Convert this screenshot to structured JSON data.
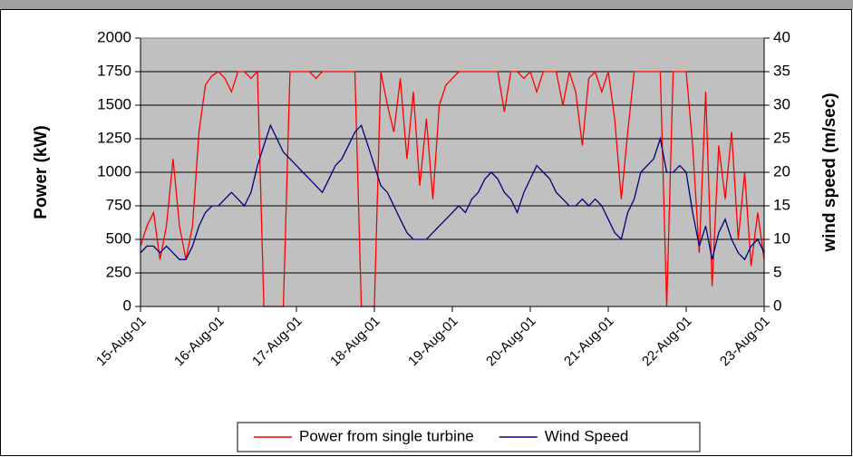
{
  "chart_data": {
    "type": "line",
    "x": [
      0,
      0.083,
      0.167,
      0.25,
      0.333,
      0.417,
      0.5,
      0.583,
      0.667,
      0.75,
      0.833,
      0.917,
      1,
      1.083,
      1.167,
      1.25,
      1.333,
      1.417,
      1.5,
      1.583,
      1.667,
      1.75,
      1.833,
      1.917,
      2,
      2.083,
      2.167,
      2.25,
      2.333,
      2.417,
      2.5,
      2.583,
      2.667,
      2.75,
      2.833,
      2.917,
      3,
      3.083,
      3.167,
      3.25,
      3.333,
      3.417,
      3.5,
      3.583,
      3.667,
      3.75,
      3.833,
      3.917,
      4,
      4.083,
      4.167,
      4.25,
      4.333,
      4.417,
      4.5,
      4.583,
      4.667,
      4.75,
      4.833,
      4.917,
      5,
      5.083,
      5.167,
      5.25,
      5.333,
      5.417,
      5.5,
      5.583,
      5.667,
      5.75,
      5.833,
      5.917,
      6,
      6.083,
      6.167,
      6.25,
      6.333,
      6.417,
      6.5,
      6.583,
      6.667,
      6.75,
      6.833,
      6.917,
      7,
      7.083,
      7.167,
      7.25,
      7.333,
      7.417,
      7.5,
      7.583,
      7.667,
      7.75,
      7.833,
      7.917,
      8
    ],
    "series": [
      {
        "name": "Power from single turbine",
        "color": "#ff0000",
        "values": [
          450,
          600,
          700,
          350,
          600,
          1100,
          600,
          350,
          600,
          1300,
          1650,
          1720,
          1750,
          1700,
          1600,
          1750,
          1750,
          1700,
          1750,
          0,
          0,
          0,
          0,
          1750,
          1750,
          1750,
          1750,
          1700,
          1750,
          1750,
          1750,
          1750,
          1750,
          1750,
          0,
          0,
          0,
          1750,
          1500,
          1300,
          1700,
          1100,
          1600,
          900,
          1400,
          800,
          1500,
          1650,
          1700,
          1750,
          1750,
          1750,
          1750,
          1750,
          1750,
          1750,
          1450,
          1750,
          1750,
          1700,
          1750,
          1600,
          1750,
          1750,
          1750,
          1500,
          1750,
          1600,
          1200,
          1700,
          1750,
          1600,
          1750,
          1400,
          800,
          1300,
          1750,
          1750,
          1750,
          1750,
          1750,
          0,
          1750,
          1750,
          1750,
          1200,
          400,
          1600,
          150,
          1200,
          800,
          1300,
          500,
          1000,
          300,
          700,
          350
        ]
      },
      {
        "name": "Wind Speed",
        "color": "#000080",
        "axis": "y2",
        "values": [
          8,
          9,
          9,
          8,
          9,
          8,
          7,
          7,
          9,
          12,
          14,
          15,
          15,
          16,
          17,
          16,
          15,
          17,
          21,
          24,
          27,
          25,
          23,
          22,
          21,
          20,
          19,
          18,
          17,
          19,
          21,
          22,
          24,
          26,
          27,
          24,
          21,
          18,
          17,
          15,
          13,
          11,
          10,
          10,
          10,
          11,
          12,
          13,
          14,
          15,
          14,
          16,
          17,
          19,
          20,
          19,
          17,
          16,
          14,
          17,
          19,
          21,
          20,
          19,
          17,
          16,
          15,
          15,
          16,
          15,
          16,
          15,
          13,
          11,
          10,
          14,
          16,
          20,
          21,
          22,
          25,
          20,
          20,
          21,
          20,
          14,
          9,
          12,
          7,
          11,
          13,
          10,
          8,
          7,
          9,
          10,
          8
        ]
      }
    ],
    "ylabel": "Power (kW)",
    "y2label": "wind speed (m/sec)",
    "xlim": [
      0,
      8
    ],
    "xticks": [
      {
        "value": 0,
        "label": "15-Aug-01"
      },
      {
        "value": 1,
        "label": "16-Aug-01"
      },
      {
        "value": 2,
        "label": "17-Aug-01"
      },
      {
        "value": 3,
        "label": "18-Aug-01"
      },
      {
        "value": 4,
        "label": "19-Aug-01"
      },
      {
        "value": 5,
        "label": "20-Aug-01"
      },
      {
        "value": 6,
        "label": "21-Aug-01"
      },
      {
        "value": 7,
        "label": "22-Aug-01"
      },
      {
        "value": 8,
        "label": "23-Aug-01"
      }
    ],
    "ylim": [
      0,
      2000
    ],
    "yticks": [
      0,
      250,
      500,
      750,
      1000,
      1250,
      1500,
      1750,
      2000
    ],
    "y2lim": [
      0,
      40
    ],
    "y2ticks": [
      0,
      5,
      10,
      15,
      20,
      25,
      30,
      35,
      40
    ],
    "grid": true,
    "legend": "bottom"
  }
}
